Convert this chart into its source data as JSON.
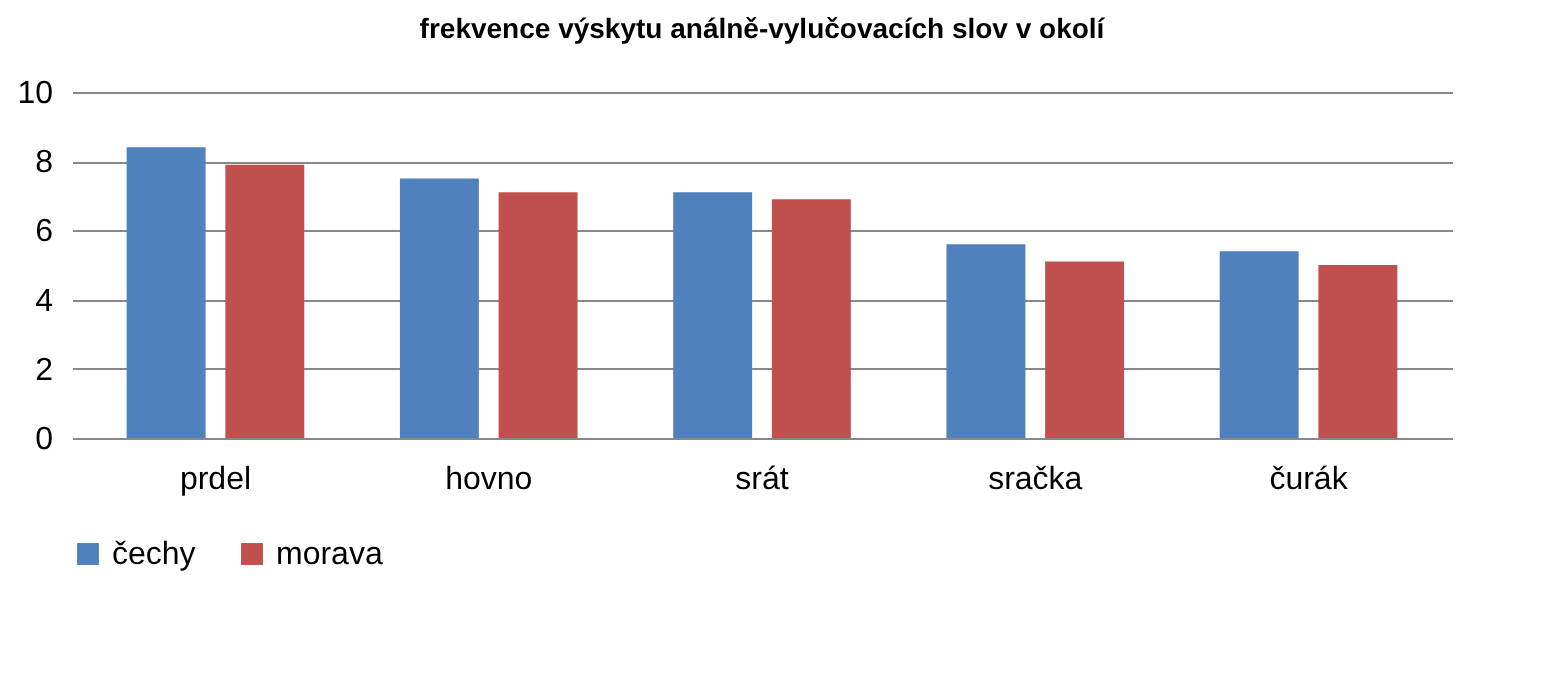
{
  "chart_data": {
    "type": "bar",
    "title": "frekvence výskytu análně-vylučovacích slov  v okolí",
    "categories": [
      "prdel",
      "hovno",
      "srát",
      "sračka",
      "čurák"
    ],
    "series": [
      {
        "name": "čechy",
        "color": "#4f81bd",
        "values": [
          8.4,
          7.5,
          7.1,
          5.6,
          5.4
        ]
      },
      {
        "name": "morava",
        "color": "#c0504d",
        "values": [
          7.9,
          7.1,
          6.9,
          5.1,
          5.0
        ]
      }
    ],
    "ylim": [
      0,
      10
    ],
    "yticks": [
      0,
      2,
      4,
      6,
      8,
      10
    ],
    "grid": "y",
    "legend": "bottom"
  }
}
